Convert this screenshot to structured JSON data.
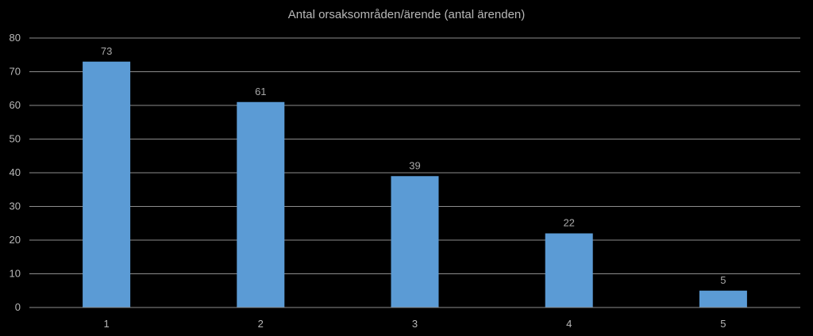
{
  "chart_data": {
    "type": "bar",
    "title": "Antal orsaksområden/ärende (antal ärenden)",
    "categories": [
      "1",
      "2",
      "3",
      "4",
      "5"
    ],
    "series": [
      {
        "values": [
          73,
          61,
          39,
          22,
          5
        ]
      }
    ],
    "ylim": [
      0,
      80
    ],
    "yticks": [
      0,
      10,
      20,
      30,
      40,
      50,
      60,
      70,
      80
    ],
    "xlabel": "",
    "ylabel": "",
    "grid": true,
    "legend": "none",
    "data_labels": [
      "73",
      "61",
      "39",
      "22",
      "5"
    ],
    "colors": {
      "background": "#000000",
      "bar": "#5b9bd5",
      "grid": "#8c8c8c",
      "text": "#b8b8b8"
    }
  }
}
